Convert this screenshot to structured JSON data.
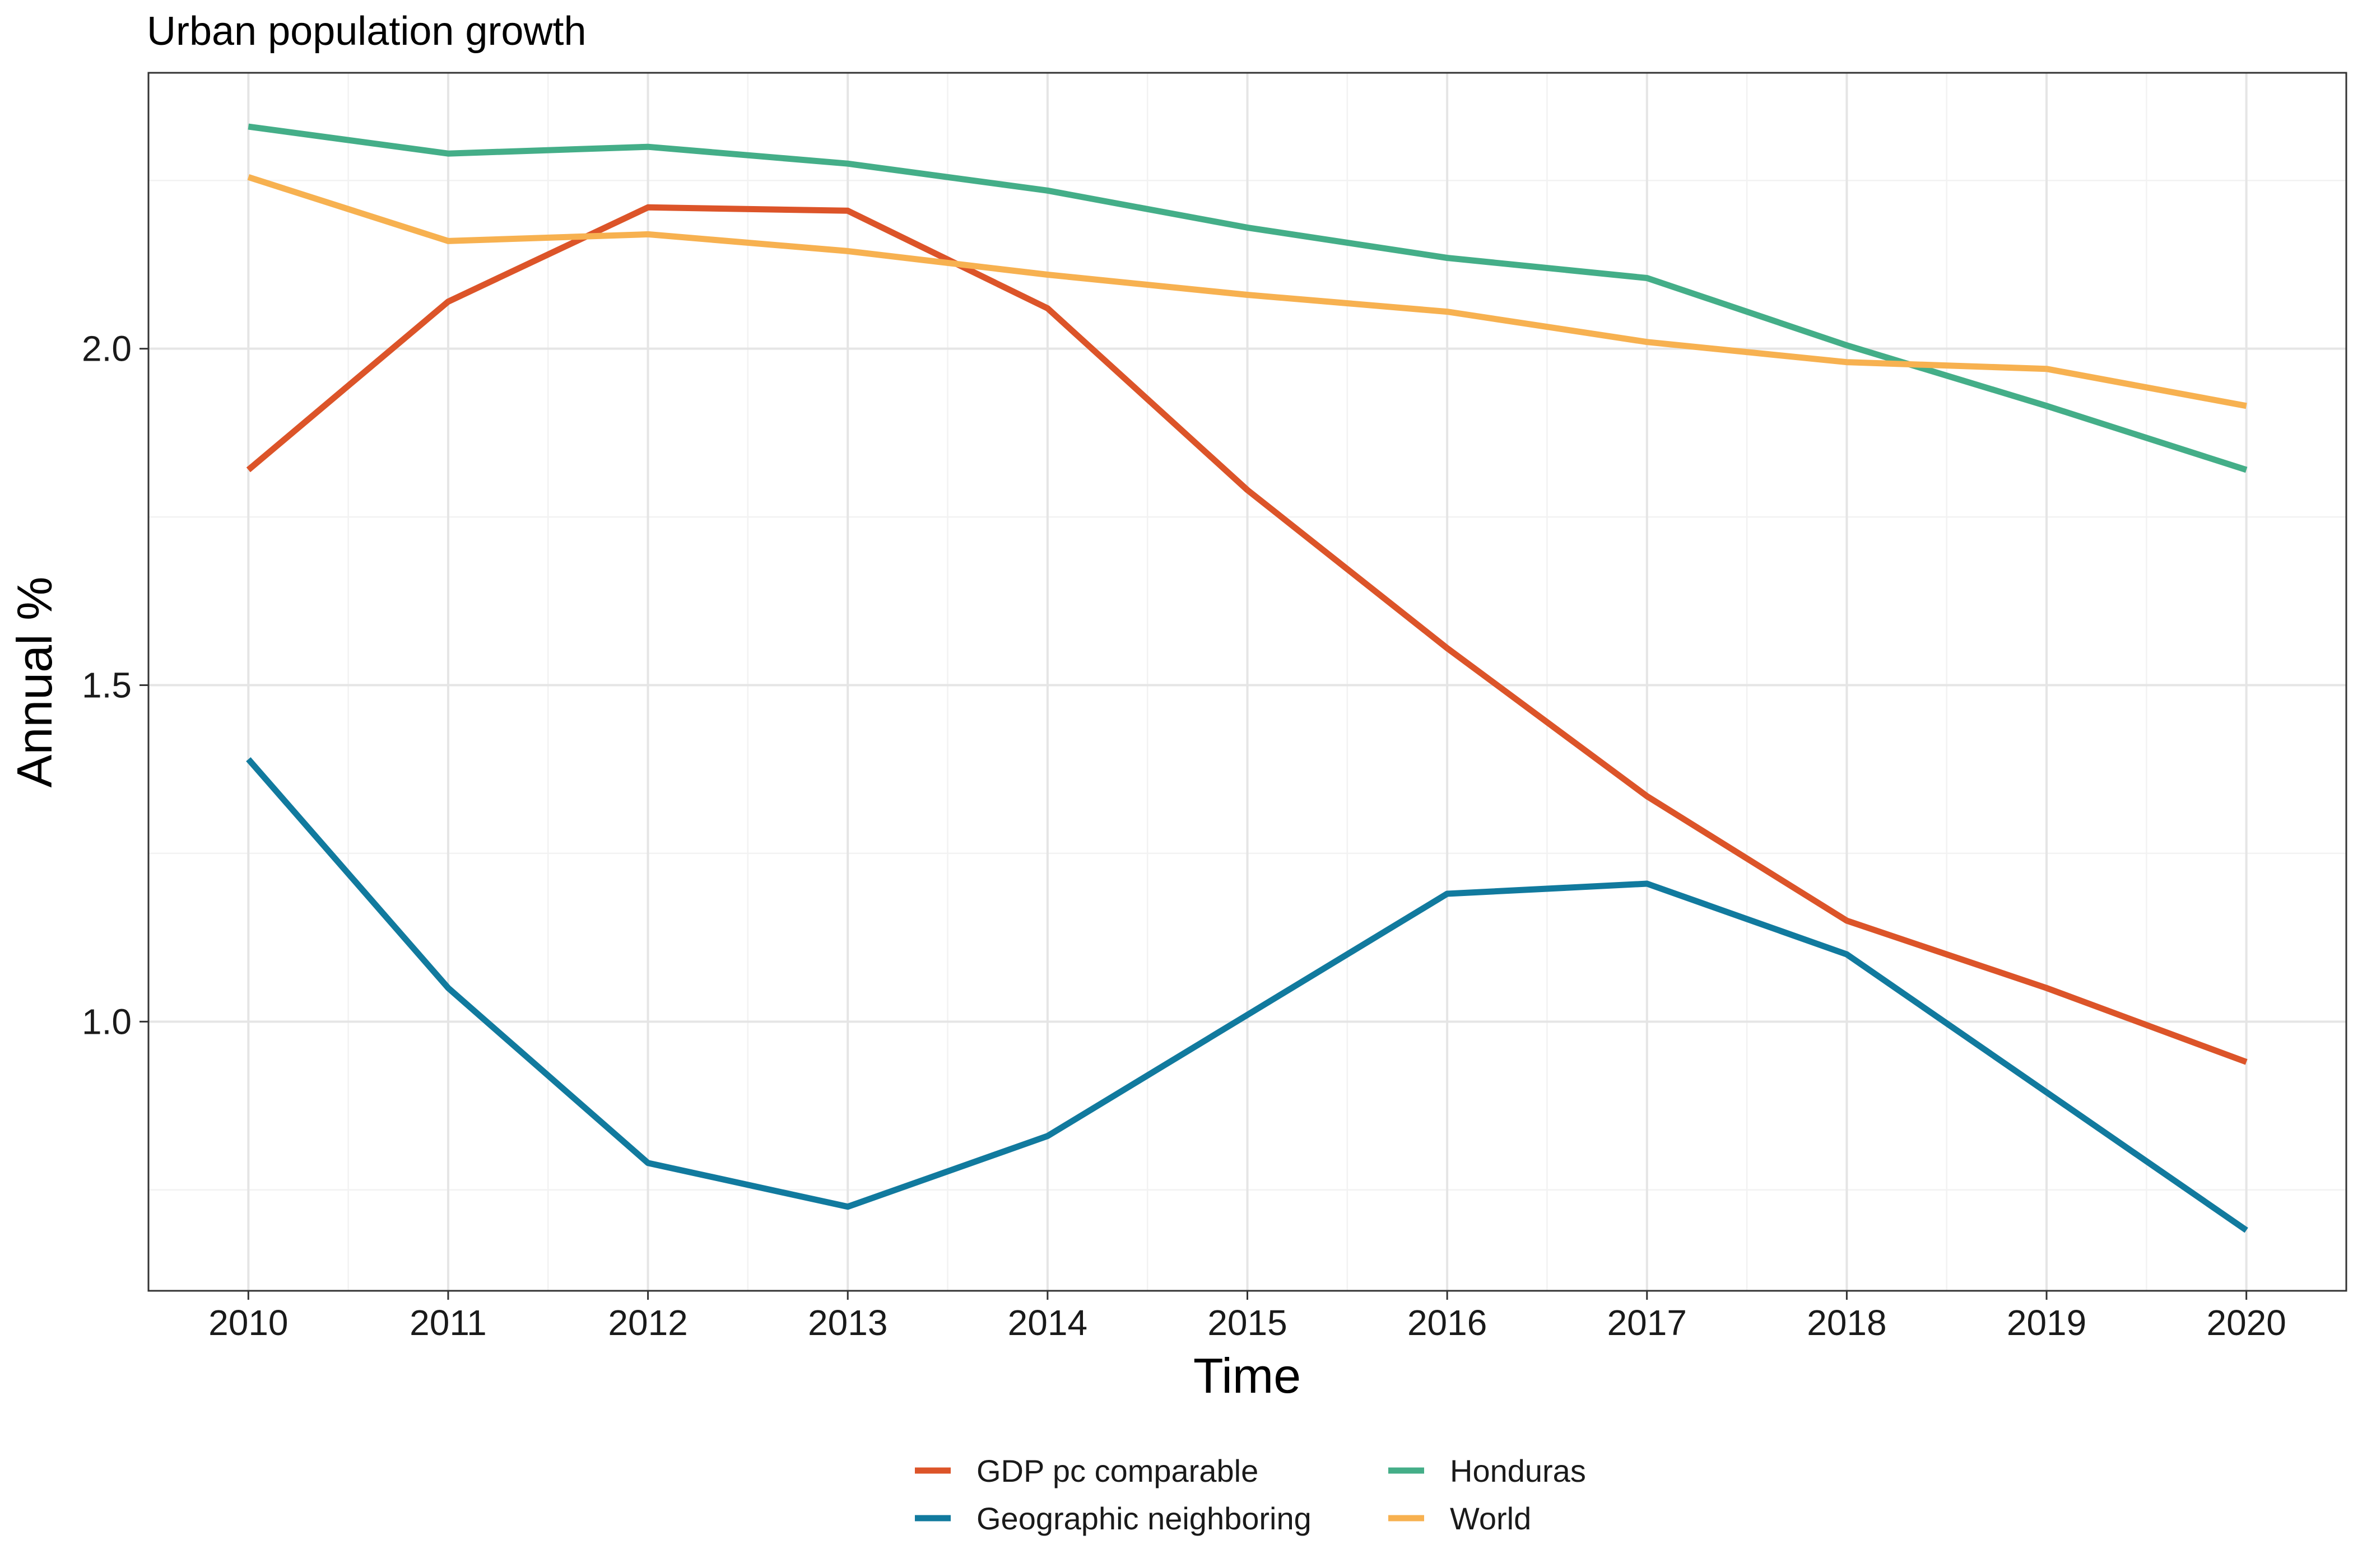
{
  "chart_data": {
    "type": "line",
    "title": "Urban population growth",
    "xlabel": "Time",
    "ylabel": "Annual %",
    "x": [
      2010,
      2011,
      2012,
      2013,
      2014,
      2015,
      2016,
      2017,
      2018,
      2019,
      2020
    ],
    "x_ticks": [
      "2010",
      "2011",
      "2012",
      "2013",
      "2014",
      "2015",
      "2016",
      "2017",
      "2018",
      "2019",
      "2020"
    ],
    "y_ticks": [
      "1.0",
      "1.5",
      "2.0"
    ],
    "y_tick_values": [
      1.0,
      1.5,
      2.0
    ],
    "xlim": [
      2009.5,
      2020.5
    ],
    "ylim": [
      0.6,
      2.41
    ],
    "grid": true,
    "legend_position": "bottom",
    "series": [
      {
        "name": "GDP pc comparable",
        "color": "#DC5429",
        "values": [
          1.82,
          2.07,
          2.21,
          2.205,
          2.06,
          1.79,
          1.555,
          1.335,
          1.15,
          1.05,
          0.94
        ]
      },
      {
        "name": "Geographic neighboring",
        "color": "#117A9E",
        "values": [
          1.39,
          1.05,
          0.79,
          0.725,
          0.83,
          1.01,
          1.19,
          1.205,
          1.1,
          0.895,
          0.69
        ]
      },
      {
        "name": "Honduras",
        "color": "#44AE88",
        "values": [
          2.33,
          2.29,
          2.3,
          2.275,
          2.235,
          2.18,
          2.135,
          2.105,
          2.005,
          1.915,
          1.82
        ]
      },
      {
        "name": "World",
        "color": "#F7B150",
        "values": [
          2.255,
          2.16,
          2.17,
          2.145,
          2.11,
          2.08,
          2.055,
          2.01,
          1.98,
          1.97,
          1.915
        ]
      }
    ]
  }
}
